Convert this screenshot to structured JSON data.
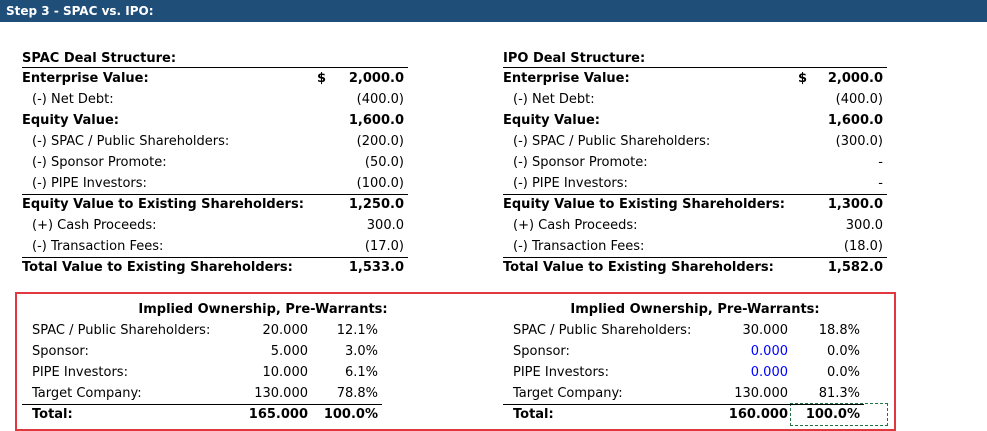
{
  "header": "Step 3 - SPAC vs. IPO:",
  "panels": [
    {
      "title": "SPAC Deal Structure:",
      "rows": [
        {
          "label": "Enterprise Value:",
          "currency": "$",
          "value": "2,000.0"
        },
        {
          "label": "(-) Net Debt:",
          "value": "(400.0)"
        },
        {
          "label": "Equity Value:",
          "value": "1,600.0"
        },
        {
          "label": "(-) SPAC / Public Shareholders:",
          "value": "(200.0)"
        },
        {
          "label": "(-) Sponsor Promote:",
          "value": "(50.0)"
        },
        {
          "label": "(-) PIPE Investors:",
          "value": "(100.0)"
        },
        {
          "label": "Equity Value to Existing Shareholders:",
          "value": "1,250.0"
        },
        {
          "label": "(+) Cash Proceeds:",
          "value": "300.0"
        },
        {
          "label": "(-) Transaction Fees:",
          "value": "(17.0)"
        },
        {
          "label": "Total Value to Existing Shareholders:",
          "value": "1,533.0"
        }
      ],
      "ownership": {
        "title": "Implied Ownership, Pre-Warrants:",
        "rows": [
          {
            "label": "SPAC / Public Shareholders:",
            "shares": "20.000",
            "pct": "12.1%"
          },
          {
            "label": "Sponsor:",
            "shares": "5.000",
            "pct": "3.0%"
          },
          {
            "label": "PIPE Investors:",
            "shares": "10.000",
            "pct": "6.1%"
          },
          {
            "label": "Target Company:",
            "shares": "130.000",
            "pct": "78.8%"
          }
        ],
        "total": {
          "label": "Total:",
          "shares": "165.000",
          "pct": "100.0%"
        }
      }
    },
    {
      "title": "IPO Deal Structure:",
      "rows": [
        {
          "label": "Enterprise Value:",
          "currency": "$",
          "value": "2,000.0"
        },
        {
          "label": "(-) Net Debt:",
          "value": "(400.0)"
        },
        {
          "label": "Equity Value:",
          "value": "1,600.0"
        },
        {
          "label": "(-) SPAC / Public Shareholders:",
          "value": "(300.0)"
        },
        {
          "label": "(-) Sponsor Promote:",
          "value": "-"
        },
        {
          "label": "(-) PIPE Investors:",
          "value": "-"
        },
        {
          "label": "Equity Value to Existing Shareholders:",
          "value": "1,300.0"
        },
        {
          "label": "(+) Cash Proceeds:",
          "value": "300.0"
        },
        {
          "label": "(-) Transaction Fees:",
          "value": "(18.0)"
        },
        {
          "label": "Total Value to Existing Shareholders:",
          "value": "1,582.0"
        }
      ],
      "ownership": {
        "title": "Implied Ownership, Pre-Warrants:",
        "rows": [
          {
            "label": "SPAC / Public Shareholders:",
            "shares": "30.000",
            "pct": "18.8%"
          },
          {
            "label": "Sponsor:",
            "shares": "0.000",
            "pct": "0.0%",
            "shares_color": "#0000ff"
          },
          {
            "label": "PIPE Investors:",
            "shares": "0.000",
            "pct": "0.0%",
            "shares_color": "#0000ff"
          },
          {
            "label": "Target Company:",
            "shares": "130.000",
            "pct": "81.3%"
          }
        ],
        "total": {
          "label": "Total:",
          "shares": "160.000",
          "pct": "100.0%"
        }
      }
    }
  ]
}
